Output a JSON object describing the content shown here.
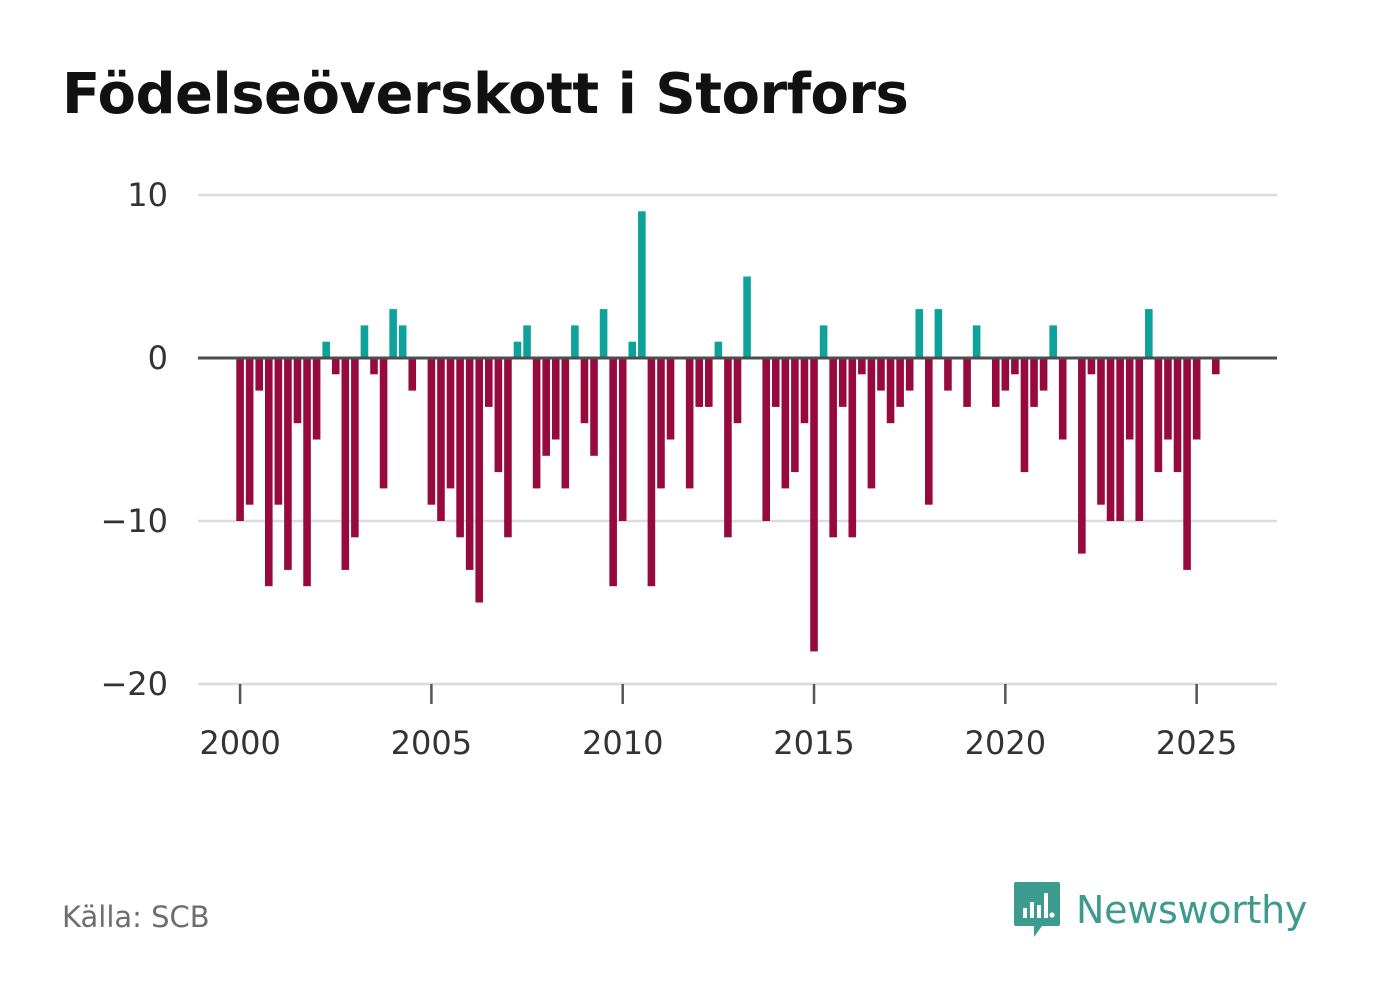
{
  "title": "Födelseöverskott i Storfors",
  "source": "Källa: SCB",
  "brand": {
    "name": "Newsworthy",
    "icon": "newsworthy-logo-icon"
  },
  "colors": {
    "positive": "#0fa29a",
    "negative": "#960a3e",
    "zero_line": "#4d4d4d",
    "grid": "#dcdcdc",
    "brand": "#3d9a8f"
  },
  "chart_data": {
    "type": "bar",
    "title": "Födelseöverskott i Storfors",
    "xlabel": "",
    "ylabel": "",
    "period": "quarterly",
    "x_start": 2000.0,
    "x_step": 0.25,
    "xlim": [
      1998.9,
      2027.1
    ],
    "ylim": [
      -20,
      10
    ],
    "y_ticks": [
      10,
      0,
      -10,
      -20
    ],
    "y_tick_labels": [
      "10",
      "0",
      "−10",
      "−20"
    ],
    "x_ticks": [
      2000,
      2005,
      2010,
      2015,
      2020,
      2025
    ],
    "x_tick_labels": [
      "2000",
      "2005",
      "2010",
      "2015",
      "2020",
      "2025"
    ],
    "grid": true,
    "values": [
      -10,
      -9,
      -2,
      -14,
      -9,
      -13,
      -4,
      -14,
      -5,
      1,
      -1,
      -13,
      -11,
      2,
      -1,
      -8,
      3,
      2,
      -2,
      0,
      -9,
      -10,
      -8,
      -11,
      -13,
      -15,
      -3,
      -7,
      -11,
      1,
      2,
      -8,
      -6,
      -5,
      -8,
      2,
      -4,
      -6,
      3,
      -14,
      -10,
      1,
      9,
      -14,
      -8,
      -5,
      0,
      -8,
      -3,
      -3,
      1,
      -11,
      -4,
      5,
      0,
      -10,
      -3,
      -8,
      -7,
      -4,
      -18,
      2,
      -11,
      -3,
      -11,
      -1,
      -8,
      -2,
      -4,
      -3,
      -2,
      3,
      -9,
      3,
      -2,
      0,
      -3,
      2,
      0,
      -3,
      -2,
      -1,
      -7,
      -3,
      -2,
      2,
      -5,
      0,
      -12,
      -1,
      -9,
      -10,
      -10,
      -5,
      -10,
      3,
      -7,
      -5,
      -7,
      -13,
      -5,
      0,
      -1
    ]
  }
}
